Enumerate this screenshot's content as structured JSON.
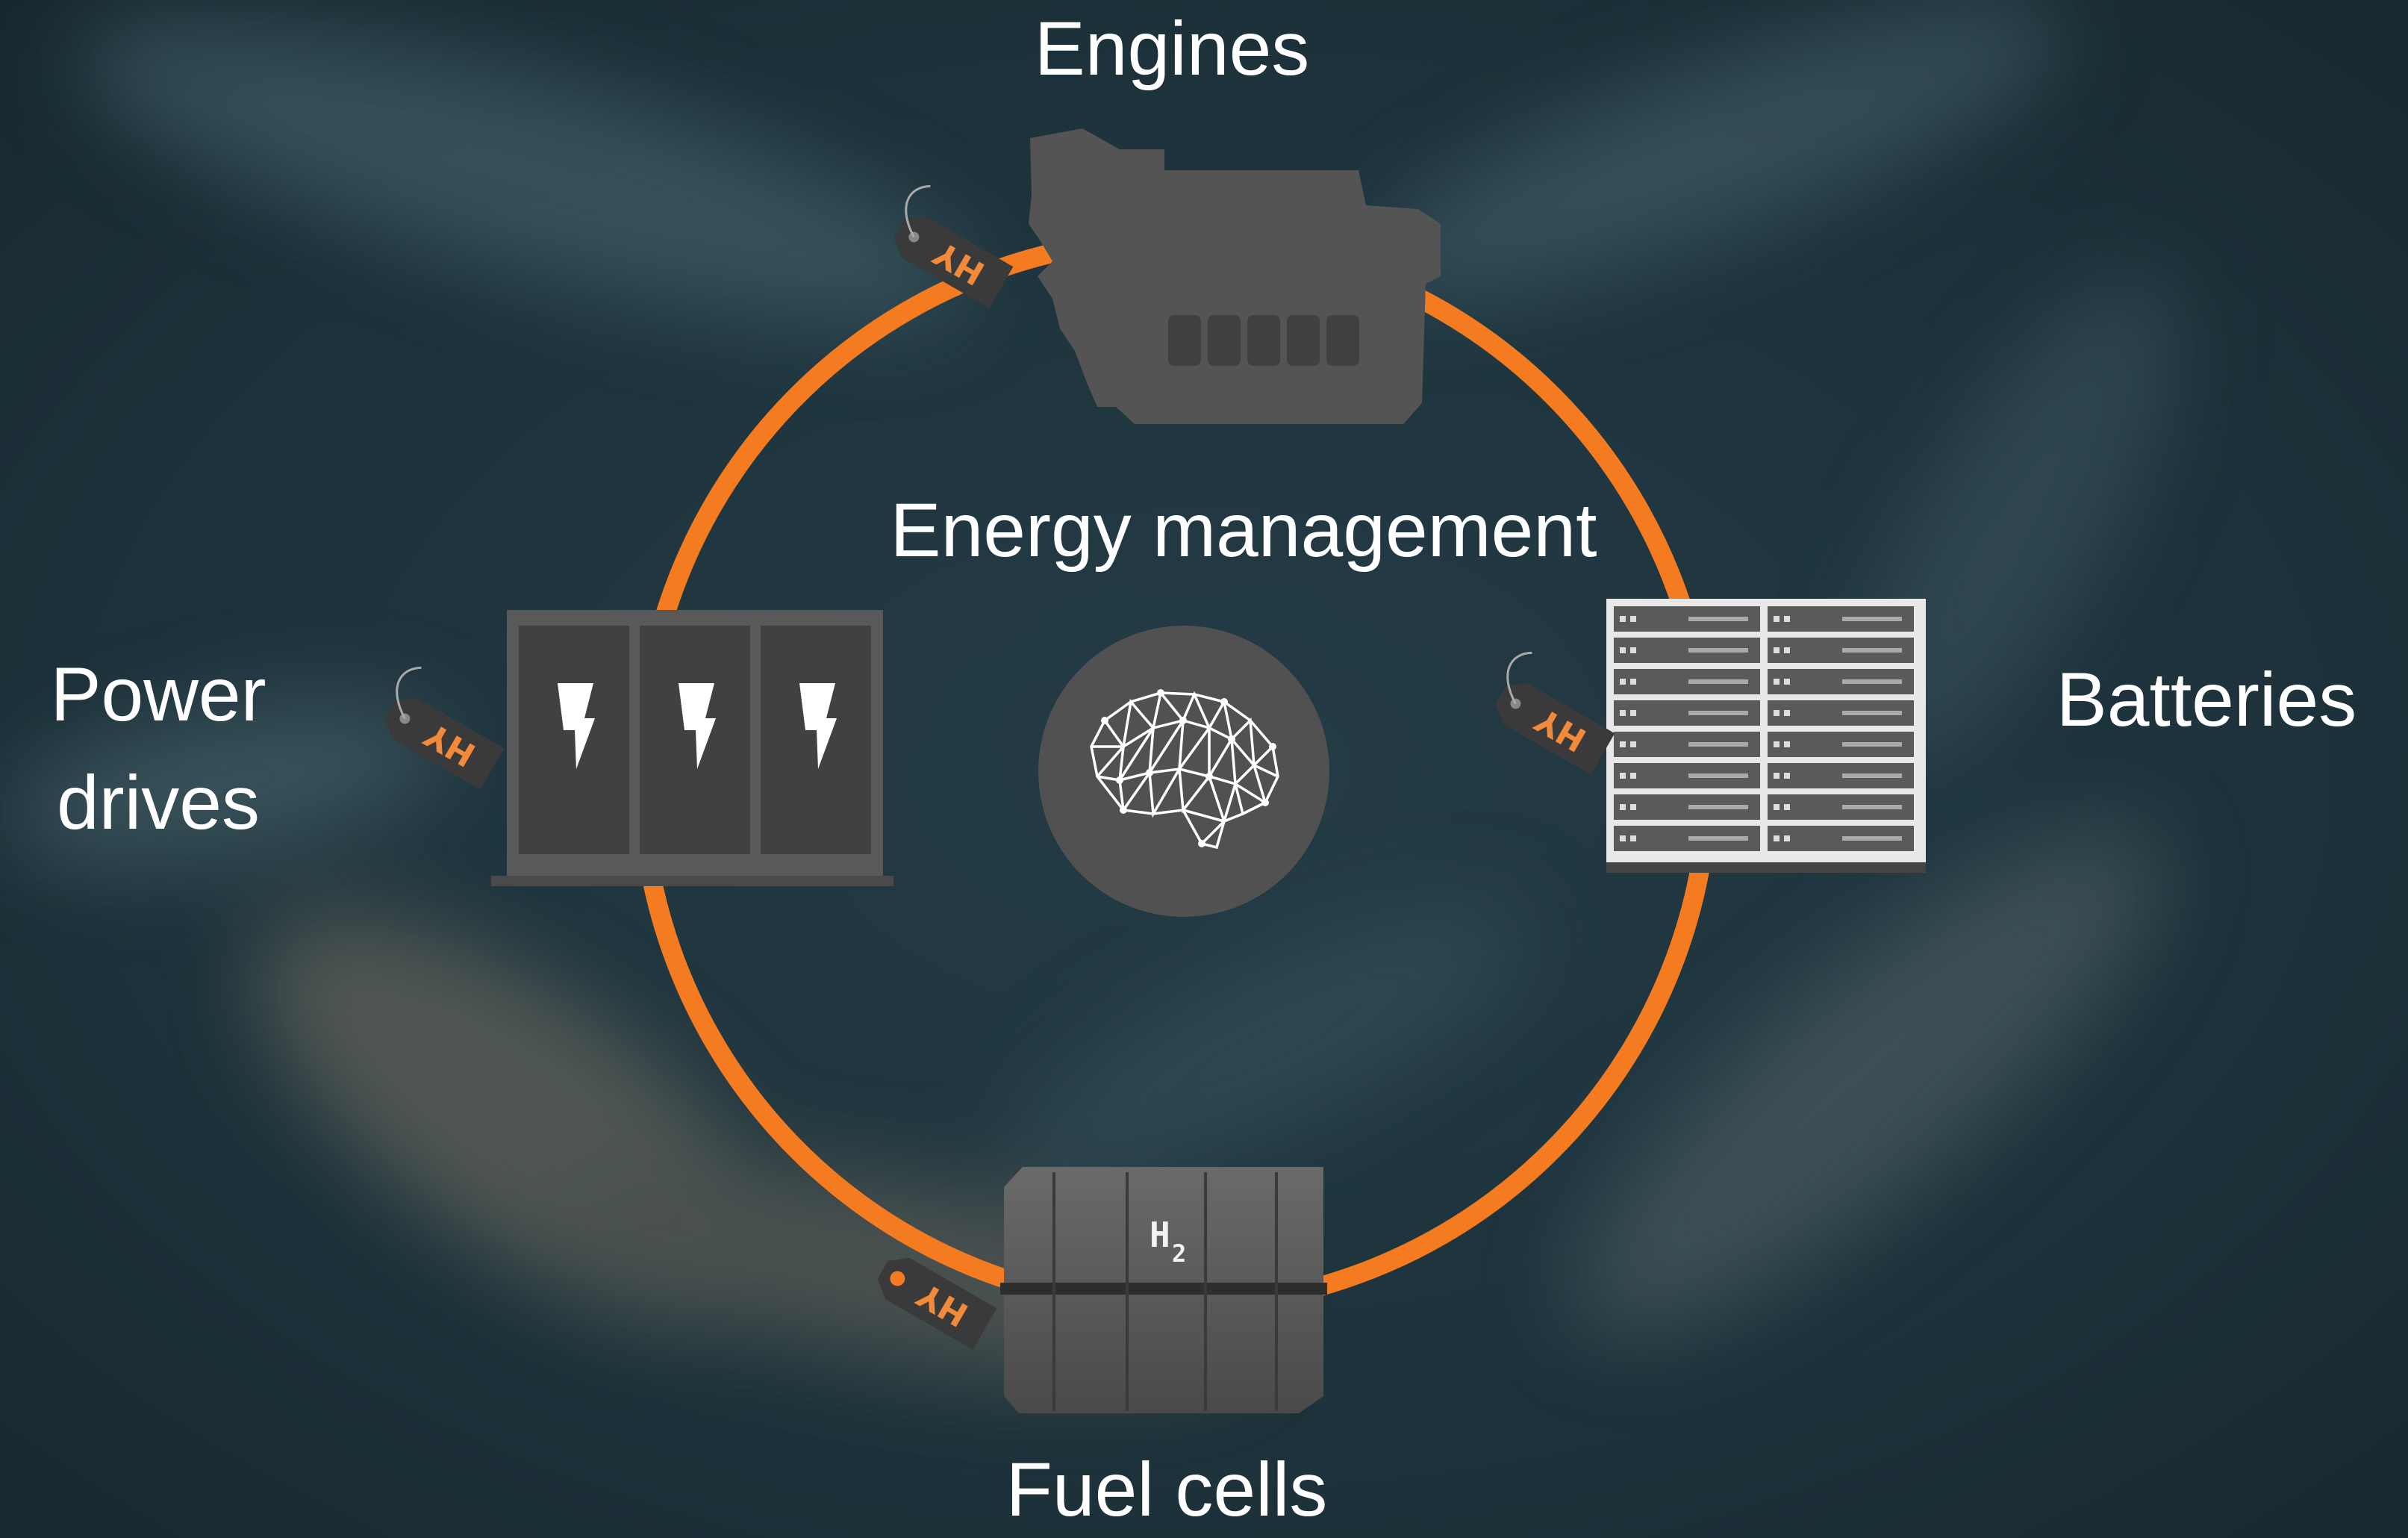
{
  "center": {
    "label": "Energy management"
  },
  "nodes": [
    {
      "lines": [
        "Engines"
      ],
      "tag": "HY"
    },
    {
      "lines": [
        "Batteries"
      ],
      "tag": "HY"
    },
    {
      "lines": [
        "Fuel cells"
      ],
      "tag": "HY",
      "symbol": "H",
      "subscript": "2"
    },
    {
      "lines": [
        "Power",
        "drives"
      ],
      "tag": "HY"
    }
  ]
}
